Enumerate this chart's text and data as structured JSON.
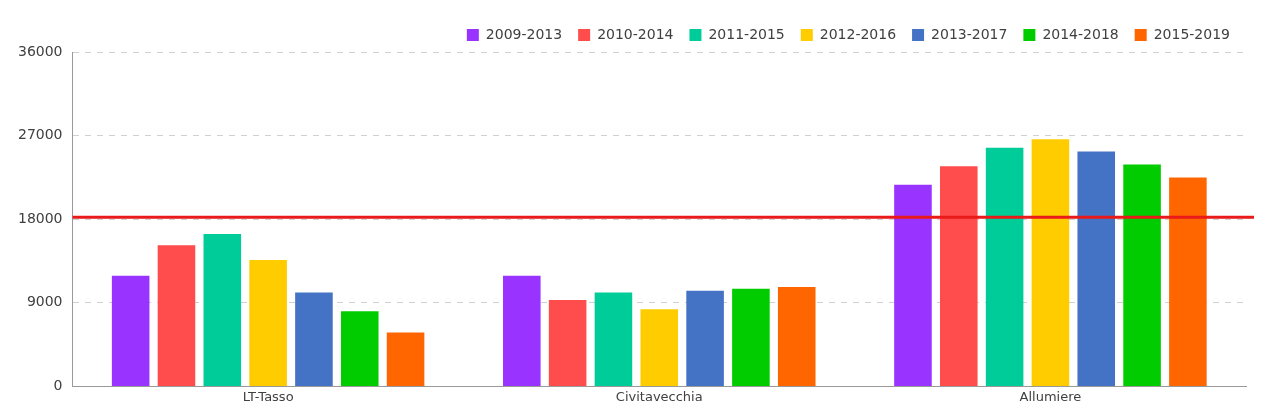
{
  "chart_data": {
    "type": "bar",
    "categories": [
      "LT-Tasso",
      "Civitavecchia",
      "Allumiere"
    ],
    "series": [
      {
        "name": "2009-2013",
        "color": "#9933ff",
        "values": [
          11900,
          11900,
          21700
        ]
      },
      {
        "name": "2010-2014",
        "color": "#ff4d4d",
        "values": [
          15200,
          9300,
          23700
        ]
      },
      {
        "name": "2011-2015",
        "color": "#00cc99",
        "values": [
          16400,
          10100,
          25700
        ]
      },
      {
        "name": "2012-2016",
        "color": "#ffcc00",
        "values": [
          13600,
          8300,
          26600
        ]
      },
      {
        "name": "2013-2017",
        "color": "#4472c4",
        "values": [
          10100,
          10300,
          25300
        ]
      },
      {
        "name": "2014-2018",
        "color": "#00cc00",
        "values": [
          8100,
          10500,
          23900
        ]
      },
      {
        "name": "2015-2019",
        "color": "#ff6600",
        "values": [
          5800,
          10700,
          22500
        ]
      }
    ],
    "ylim": [
      0,
      36000
    ],
    "yticks": [
      0,
      9000,
      18000,
      27000,
      36000
    ],
    "grid": "y",
    "legend": "top right",
    "ref_lines": [
      {
        "axis": "y",
        "value": 18200,
        "color": "#e81a1a"
      }
    ]
  }
}
